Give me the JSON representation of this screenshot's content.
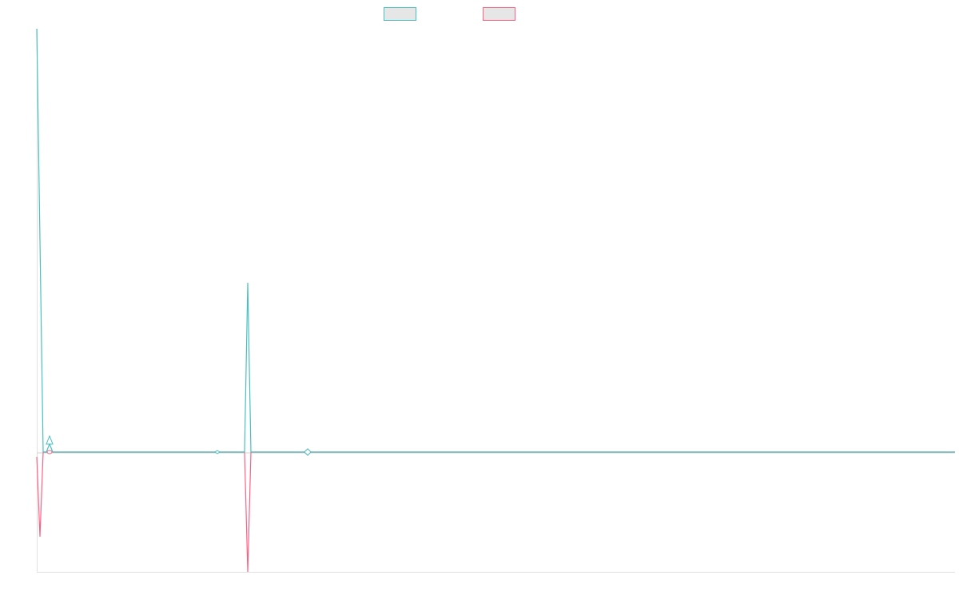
{
  "chart_data": {
    "type": "line",
    "title": "",
    "xlabel": "",
    "ylabel": "",
    "xlim": [
      0,
      287.25
    ],
    "ylim": [
      -0.283,
      1.0
    ],
    "grid": false,
    "legend": "top",
    "series": [
      {
        "color": "#4bc0c0",
        "points": [
          [
            0,
            1.0
          ],
          [
            2,
            0
          ],
          [
            3,
            0
          ],
          [
            4,
            0.019
          ],
          [
            5,
            0
          ],
          [
            56.5,
            0
          ],
          [
            65,
            0
          ],
          [
            66,
            0.4
          ],
          [
            67,
            0
          ],
          [
            73.5,
            0
          ],
          [
            84.75,
            0
          ],
          [
            287.25,
            0
          ]
        ],
        "markers": [
          {
            "x": 4,
            "y": 0.019,
            "shape": "triangle"
          },
          {
            "x": 56.5,
            "y": 0,
            "shape": "diamond-small"
          },
          {
            "x": 84.75,
            "y": 0,
            "shape": "diamond"
          }
        ]
      },
      {
        "color": "#ff6384",
        "points": [
          [
            0,
            -0.011
          ],
          [
            1,
            -0.2
          ],
          [
            2,
            0
          ],
          [
            4,
            0
          ],
          [
            65,
            0
          ],
          [
            66,
            -0.283
          ],
          [
            67,
            0
          ],
          [
            73.5,
            0
          ],
          [
            84.75,
            0
          ],
          [
            287.25,
            0
          ]
        ],
        "markers": [
          {
            "x": 4,
            "y": 0,
            "shape": "circle-small"
          },
          {
            "x": 84.75,
            "y": 0,
            "shape": "diamond"
          }
        ]
      }
    ]
  }
}
